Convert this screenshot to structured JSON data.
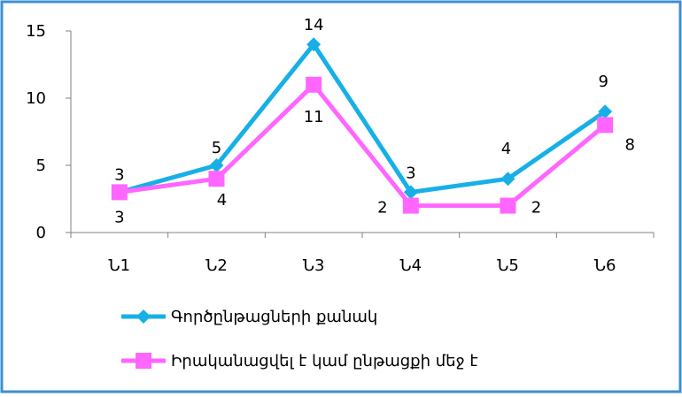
{
  "colors": {
    "border": "#3d8fd1",
    "axis": "#808080",
    "series1": "#17b0e6",
    "series2": "#ff66ff"
  },
  "chart_data": {
    "type": "line",
    "categories": [
      "Ն1",
      "Ն2",
      "Ն3",
      "Ն4",
      "Ն5",
      "Ն6"
    ],
    "ylim": [
      0,
      15
    ],
    "yticks": [
      0,
      5,
      10,
      15
    ],
    "grid": false,
    "legend_position": "bottom",
    "series": [
      {
        "name": "Գործընթացների քանակ",
        "values": [
          3,
          5,
          14,
          3,
          4,
          9
        ],
        "labels": [
          "3",
          "5",
          "14",
          "3",
          "4",
          "9"
        ],
        "marker": "diamond",
        "color": "#17b0e6"
      },
      {
        "name": "Իրականացվել է կամ ընթացքի մեջ է",
        "values": [
          3,
          4,
          11,
          2,
          2,
          8
        ],
        "labels": [
          "3",
          "4",
          "11",
          "2",
          "2",
          "8"
        ],
        "marker": "square",
        "color": "#ff66ff"
      }
    ]
  }
}
